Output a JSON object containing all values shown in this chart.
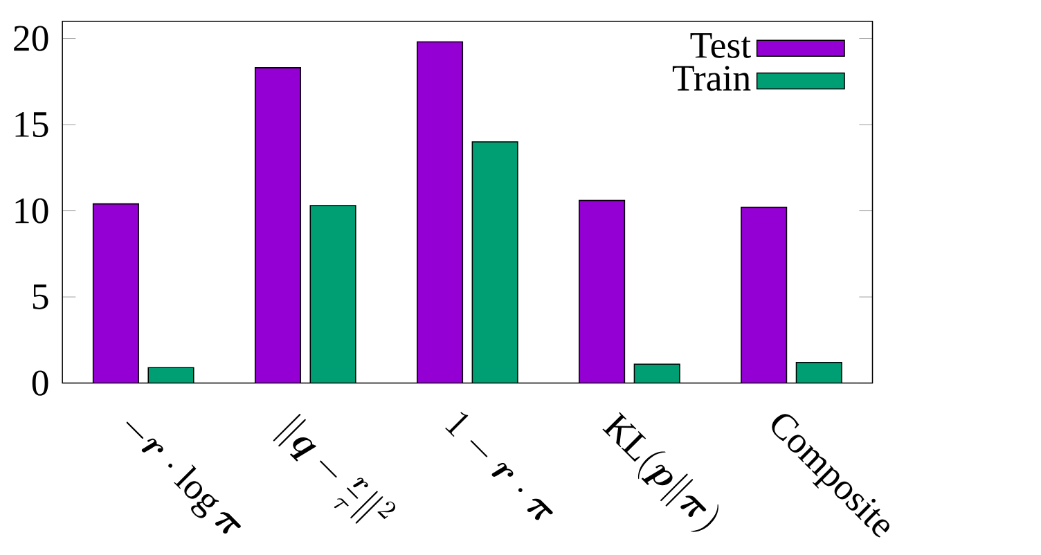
{
  "chart_data": {
    "type": "bar",
    "categories": [
      "-\\boldsymbol{r}\\cdot\\log\\boldsymbol{\\pi}",
      "\\|\\boldsymbol{q}-\\frac{\\boldsymbol{r}}{\\tau}\\|^2",
      "1-\\boldsymbol{r}\\cdot\\boldsymbol{\\pi}",
      "\\mathrm{KL}(\\boldsymbol{p}\\|\\boldsymbol{\\pi})",
      "Composite"
    ],
    "series": [
      {
        "name": "Test",
        "color": "#9400d3",
        "values": [
          10.4,
          18.3,
          19.8,
          10.6,
          10.2
        ]
      },
      {
        "name": "Train",
        "color": "#009e73",
        "values": [
          0.9,
          10.3,
          14.0,
          1.1,
          1.2
        ]
      }
    ],
    "ylim": [
      0,
      21
    ],
    "yticks": [
      0,
      5,
      10,
      15,
      20
    ],
    "legend": "top right"
  }
}
